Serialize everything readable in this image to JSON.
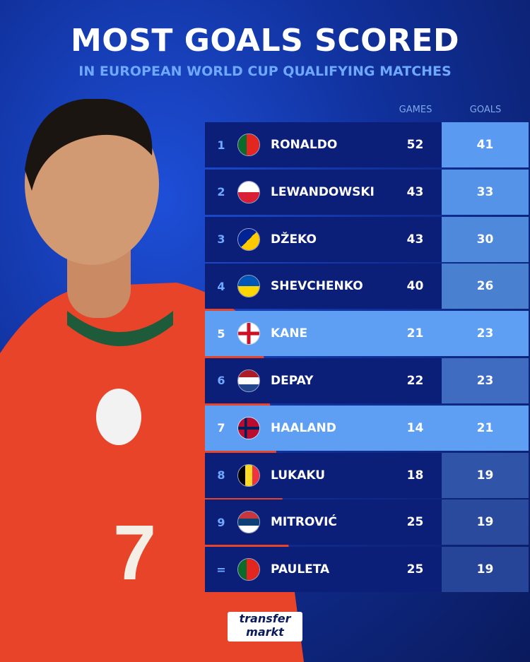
{
  "title": "MOST GOALS SCORED",
  "subtitle": "IN EUROPEAN WORLD CUP QUALIFYING MATCHES",
  "logo": {
    "line1": "transfer",
    "line2": "markt"
  },
  "colors": {
    "row": "#0c1f78",
    "highlight": "#5e9ff4",
    "rank": "#6ea8ff"
  },
  "chart_data": {
    "type": "table",
    "columns": [
      "GAMES",
      "GOALS"
    ],
    "rows": [
      {
        "rank": "1",
        "flag": "portugal",
        "name": "RONALDO",
        "games": 52,
        "goals": 41
      },
      {
        "rank": "2",
        "flag": "poland",
        "name": "LEWANDOWSKI",
        "games": 43,
        "goals": 33
      },
      {
        "rank": "3",
        "flag": "bosnia",
        "name": "DŽEKO",
        "games": 43,
        "goals": 30
      },
      {
        "rank": "4",
        "flag": "ukraine",
        "name": "SHEVCHENKO",
        "games": 40,
        "goals": 26
      },
      {
        "rank": "5",
        "flag": "england",
        "name": "KANE",
        "games": 21,
        "goals": 23,
        "highlight": true
      },
      {
        "rank": "6",
        "flag": "netherlands",
        "name": "DEPAY",
        "games": 22,
        "goals": 23
      },
      {
        "rank": "7",
        "flag": "norway",
        "name": "HAALAND",
        "games": 14,
        "goals": 21,
        "highlight": true
      },
      {
        "rank": "8",
        "flag": "belgium",
        "name": "LUKAKU",
        "games": 18,
        "goals": 19
      },
      {
        "rank": "9",
        "flag": "serbia",
        "name": "MITROVIĆ",
        "games": 25,
        "goals": 19
      },
      {
        "rank": "=",
        "flag": "portugal",
        "name": "PAULETA",
        "games": 25,
        "goals": 19
      }
    ]
  }
}
